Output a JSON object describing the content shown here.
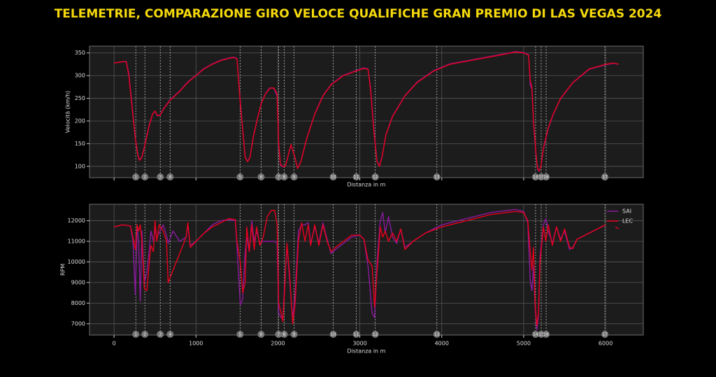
{
  "chart_data": [
    {
      "type": "line",
      "title": "TELEMETRIE, COMPARAZIONE GIRO VELOCE QUALIFICHE GRAN PREMIO DI LAS VEGAS 2024",
      "y_label": "Velocità (km/h)",
      "x_label": "Distanza in m",
      "xlim": [
        -300,
        6460
      ],
      "ylim": [
        75,
        365
      ],
      "xticks": [
        0,
        1000,
        2000,
        3000,
        4000,
        5000,
        6000
      ],
      "show_xtick_labels": false,
      "yticks": [
        100,
        150,
        200,
        250,
        300,
        350
      ],
      "grid": true,
      "x": [
        0,
        120,
        150,
        180,
        220,
        260,
        290,
        310,
        340,
        380,
        430,
        470,
        500,
        530,
        560,
        600,
        680,
        800,
        900,
        1000,
        1100,
        1200,
        1300,
        1400,
        1460,
        1500,
        1540,
        1570,
        1600,
        1630,
        1660,
        1700,
        1750,
        1800,
        1850,
        1900,
        1950,
        1990,
        2010,
        2030,
        2060,
        2090,
        2120,
        2160,
        2200,
        2240,
        2280,
        2350,
        2450,
        2550,
        2650,
        2800,
        2950,
        3050,
        3100,
        3130,
        3170,
        3210,
        3240,
        3270,
        3320,
        3400,
        3550,
        3700,
        3900,
        4100,
        4400,
        4700,
        4900,
        5000,
        5060,
        5080,
        5100,
        5120,
        5150,
        5170,
        5190,
        5210,
        5240,
        5300,
        5360,
        5450,
        5600,
        5800,
        6000,
        6100,
        6160
      ],
      "series": [
        {
          "name": "SAI",
          "color": "#8b1a9e",
          "values": [
            328,
            331,
            331,
            305,
            235,
            162,
            127,
            114,
            121,
            152,
            192,
            216,
            221,
            211,
            213,
            226,
            246,
            266,
            286,
            301,
            316,
            326,
            334,
            339,
            341,
            338,
            245,
            182,
            121,
            111,
            121,
            166,
            206,
            241,
            261,
            273,
            272,
            255,
            145,
            103,
            99,
            101,
            121,
            147,
            124,
            96,
            111,
            161,
            216,
            256,
            281,
            301,
            311,
            317,
            315,
            275,
            185,
            112,
            101,
            121,
            171,
            211,
            256,
            286,
            311,
            326,
            336,
            346,
            353,
            351,
            346,
            280,
            270,
            195,
            125,
            93,
            89,
            99,
            138,
            183,
            214,
            249,
            284,
            314,
            324,
            327,
            325
          ]
        },
        {
          "name": "LEC",
          "color": "#e8001c",
          "values": [
            328,
            331,
            330,
            300,
            230,
            160,
            125,
            113,
            120,
            150,
            190,
            215,
            222,
            212,
            212,
            225,
            245,
            265,
            285,
            300,
            315,
            325,
            333,
            338,
            340,
            337,
            240,
            180,
            120,
            110,
            120,
            165,
            205,
            240,
            260,
            272,
            273,
            260,
            150,
            105,
            100,
            100,
            120,
            148,
            125,
            95,
            110,
            160,
            215,
            255,
            280,
            300,
            310,
            316,
            314,
            270,
            180,
            110,
            100,
            120,
            170,
            210,
            255,
            285,
            310,
            325,
            335,
            345,
            352,
            350,
            345,
            290,
            275,
            200,
            130,
            95,
            90,
            100,
            140,
            185,
            215,
            250,
            285,
            315,
            325,
            328,
            325
          ]
        }
      ],
      "corners": [
        {
          "x": 265,
          "label": "1"
        },
        {
          "x": 376,
          "label": "2"
        },
        {
          "x": 564,
          "label": "3"
        },
        {
          "x": 684,
          "label": "4"
        },
        {
          "x": 1538,
          "label": "5"
        },
        {
          "x": 1795,
          "label": "6"
        },
        {
          "x": 2008,
          "label": "7"
        },
        {
          "x": 2077,
          "label": "8"
        },
        {
          "x": 2197,
          "label": "9"
        },
        {
          "x": 2675,
          "label": "10"
        },
        {
          "x": 2957,
          "label": "11"
        },
        {
          "x": 3188,
          "label": "12"
        },
        {
          "x": 3940,
          "label": "13"
        },
        {
          "x": 5145,
          "label": "14"
        },
        {
          "x": 5214,
          "label": "15"
        },
        {
          "x": 5274,
          "label": "16"
        },
        {
          "x": 5991,
          "label": "17"
        }
      ]
    },
    {
      "type": "line",
      "y_label": "RPM",
      "x_label": "Distanza in m",
      "xlim": [
        -300,
        6460
      ],
      "ylim": [
        6450,
        12800
      ],
      "xticks": [
        0,
        1000,
        2000,
        3000,
        4000,
        5000,
        6000
      ],
      "show_xtick_labels": true,
      "yticks": [
        7000,
        8000,
        9000,
        10000,
        11000,
        12000
      ],
      "grid": true,
      "legend": "upper right",
      "x": [
        0,
        100,
        200,
        230,
        260,
        280,
        300,
        320,
        340,
        370,
        400,
        430,
        450,
        480,
        500,
        520,
        550,
        600,
        640,
        660,
        720,
        800,
        880,
        900,
        930,
        1000,
        1100,
        1200,
        1300,
        1400,
        1480,
        1500,
        1540,
        1570,
        1600,
        1620,
        1650,
        1680,
        1710,
        1740,
        1780,
        1820,
        1870,
        1920,
        1960,
        1990,
        2010,
        2040,
        2060,
        2080,
        2110,
        2150,
        2180,
        2210,
        2250,
        2290,
        2330,
        2370,
        2400,
        2450,
        2500,
        2550,
        2600,
        2650,
        2700,
        2800,
        2900,
        3000,
        3050,
        3100,
        3150,
        3180,
        3210,
        3250,
        3280,
        3310,
        3350,
        3400,
        3450,
        3500,
        3550,
        3650,
        3800,
        4000,
        4300,
        4600,
        4900,
        5000,
        5050,
        5080,
        5100,
        5120,
        5140,
        5160,
        5180,
        5200,
        5240,
        5270,
        5300,
        5350,
        5400,
        5450,
        5500,
        5560,
        5600,
        5650,
        5800,
        6000,
        6080,
        6120,
        6160
      ],
      "series": [
        {
          "name": "SAI",
          "color": "#8b1a9e",
          "values": [
            11700,
            11800,
            11750,
            11000,
            8400,
            11700,
            11000,
            8100,
            11500,
            9000,
            9500,
            10600,
            11500,
            11000,
            11600,
            11200,
            11400,
            11800,
            11300,
            10900,
            11500,
            11000,
            11200,
            11800,
            10800,
            11000,
            11400,
            11800,
            12000,
            12050,
            12000,
            10800,
            7900,
            8200,
            10500,
            11200,
            10500,
            12000,
            11000,
            11500,
            10900,
            11000,
            11000,
            11000,
            11000,
            10900,
            7500,
            7300,
            7200,
            8800,
            10800,
            8800,
            7200,
            8500,
            11500,
            11800,
            11800,
            11900,
            10900,
            11700,
            10900,
            11900,
            11100,
            10400,
            10600,
            10900,
            11200,
            11300,
            11100,
            9800,
            7500,
            7300,
            10000,
            12000,
            12400,
            11400,
            12200,
            11200,
            10900,
            11600,
            10700,
            11000,
            11400,
            11800,
            12100,
            12400,
            12550,
            12450,
            11900,
            9100,
            8600,
            9800,
            7800,
            6700,
            7300,
            10300,
            11800,
            12100,
            11500,
            10900,
            11700,
            11100,
            11500,
            10600,
            10700,
            11100,
            11400,
            11800,
            null,
            null,
            null
          ]
        },
        {
          "name": "LEC",
          "color": "#e8001c",
          "values": [
            11700,
            11800,
            11750,
            11200,
            10600,
            11800,
            11500,
            11800,
            11000,
            8700,
            8600,
            10000,
            10800,
            10500,
            12000,
            11000,
            11800,
            11500,
            11000,
            9000,
            9600,
            10400,
            11200,
            11900,
            10700,
            11000,
            11400,
            11700,
            11900,
            12100,
            12050,
            11000,
            10000,
            8500,
            9000,
            11700,
            10500,
            11800,
            10600,
            11700,
            10800,
            11200,
            12200,
            12500,
            12500,
            11800,
            8000,
            7500,
            7100,
            8500,
            10900,
            9000,
            7000,
            8000,
            11000,
            11900,
            11000,
            11800,
            10800,
            11800,
            10800,
            11800,
            11000,
            10500,
            10700,
            11000,
            11300,
            11300,
            11100,
            10100,
            9800,
            7800,
            9500,
            11700,
            11200,
            11500,
            11000,
            11400,
            11000,
            11600,
            10600,
            11000,
            11400,
            11700,
            12000,
            12300,
            12450,
            12400,
            12000,
            10500,
            9600,
            10700,
            8000,
            6900,
            7500,
            10000,
            11700,
            11000,
            11800,
            10800,
            11700,
            11000,
            11600,
            10700,
            10650,
            11100,
            11400,
            11800,
            null,
            11700,
            11600
          ]
        }
      ],
      "corners": [
        {
          "x": 265,
          "label": "1"
        },
        {
          "x": 376,
          "label": "2"
        },
        {
          "x": 564,
          "label": "3"
        },
        {
          "x": 684,
          "label": "4"
        },
        {
          "x": 1538,
          "label": "5"
        },
        {
          "x": 1795,
          "label": "6"
        },
        {
          "x": 2008,
          "label": "7"
        },
        {
          "x": 2077,
          "label": "8"
        },
        {
          "x": 2197,
          "label": "9"
        },
        {
          "x": 2675,
          "label": "10"
        },
        {
          "x": 2957,
          "label": "11"
        },
        {
          "x": 3188,
          "label": "12"
        },
        {
          "x": 3940,
          "label": "13"
        },
        {
          "x": 5145,
          "label": "14"
        },
        {
          "x": 5214,
          "label": "15"
        },
        {
          "x": 5274,
          "label": "16"
        },
        {
          "x": 5991,
          "label": "17"
        }
      ]
    }
  ]
}
